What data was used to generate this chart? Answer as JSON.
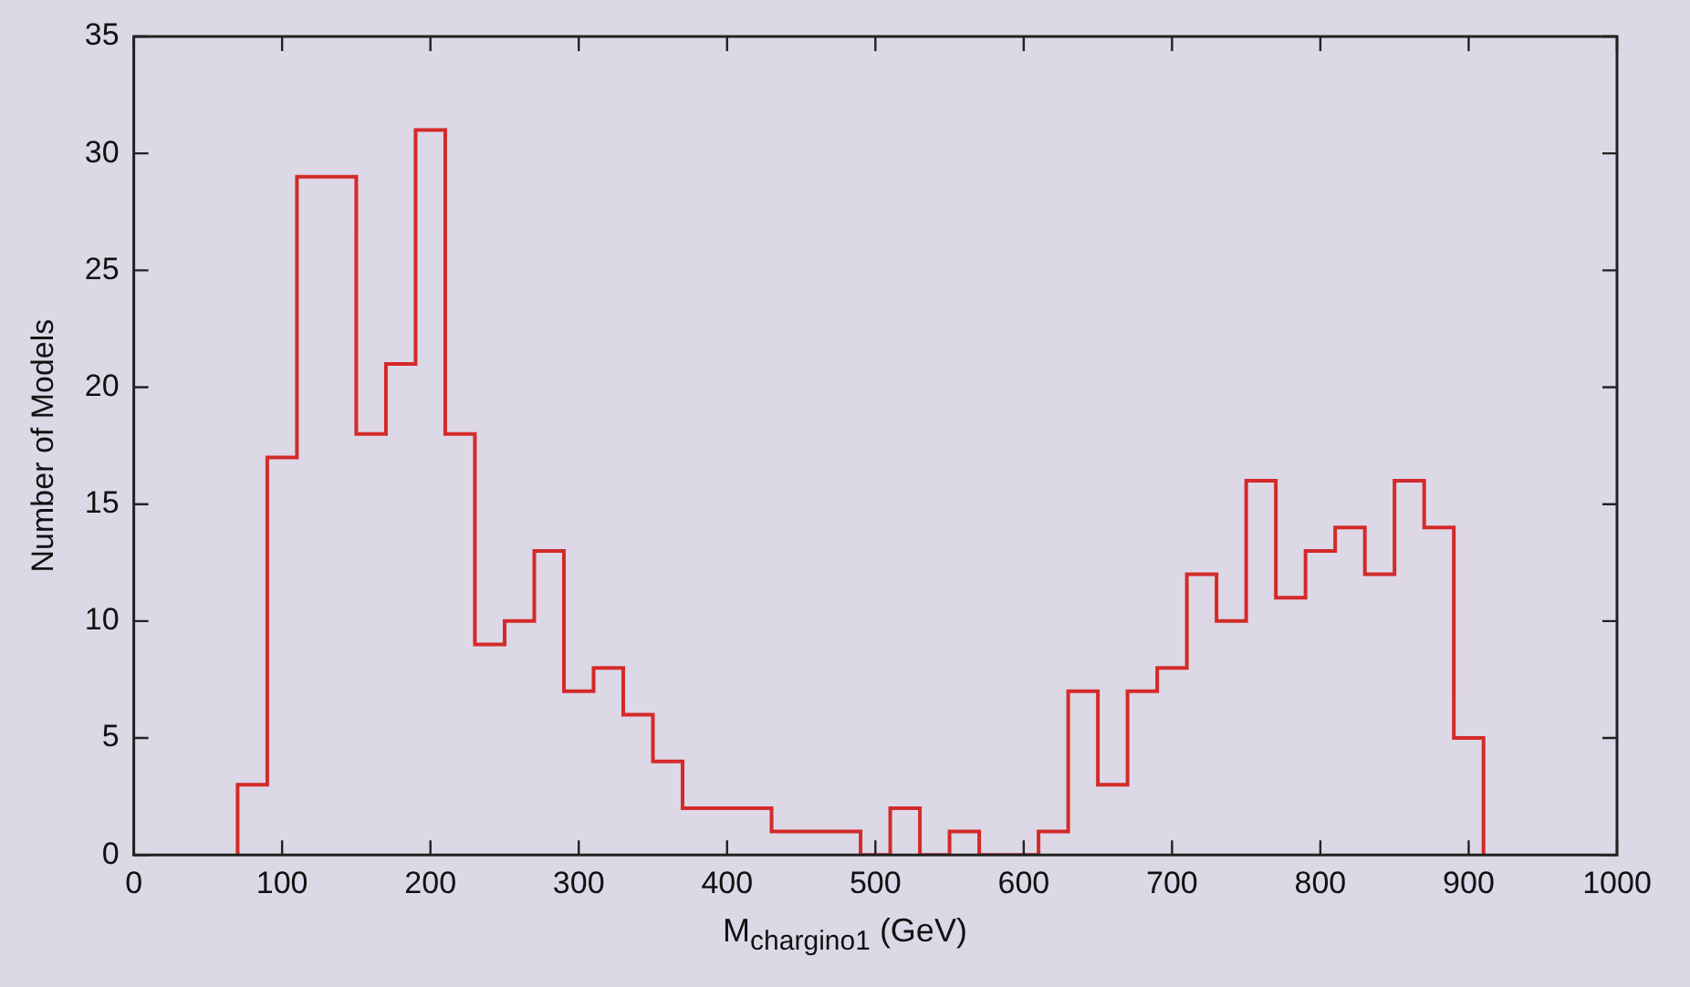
{
  "chart_data": {
    "type": "histogram",
    "xlabel": "M$_{chargino1}$ (GeV)",
    "ylabel": "Number of Models",
    "bins": [
      70,
      90,
      110,
      130,
      150,
      170,
      190,
      210,
      230,
      250,
      270,
      290,
      310,
      330,
      350,
      370,
      390,
      410,
      430,
      450,
      470,
      490,
      510,
      530,
      550,
      570,
      590,
      610,
      630,
      650,
      670,
      690,
      710,
      730,
      750,
      770,
      790,
      810,
      830,
      850,
      870,
      890,
      910
    ],
    "values": [
      3,
      17,
      29,
      29,
      18,
      21,
      31,
      18,
      9,
      10,
      13,
      7,
      8,
      6,
      4,
      2,
      2,
      2,
      1,
      1,
      1,
      0,
      2,
      0,
      1,
      0,
      0,
      1,
      7,
      3,
      7,
      8,
      12,
      10,
      16,
      11,
      13,
      14,
      12,
      16,
      14,
      5
    ],
    "color": "#d42a2a",
    "xlim": [
      0,
      1000
    ],
    "xticks": [
      0,
      100,
      200,
      300,
      400,
      500,
      600,
      700,
      800,
      900,
      1000
    ],
    "ylim": [
      0,
      35
    ],
    "yticks": [
      0,
      5,
      10,
      15,
      20,
      25,
      30,
      35
    ],
    "grid": false
  }
}
